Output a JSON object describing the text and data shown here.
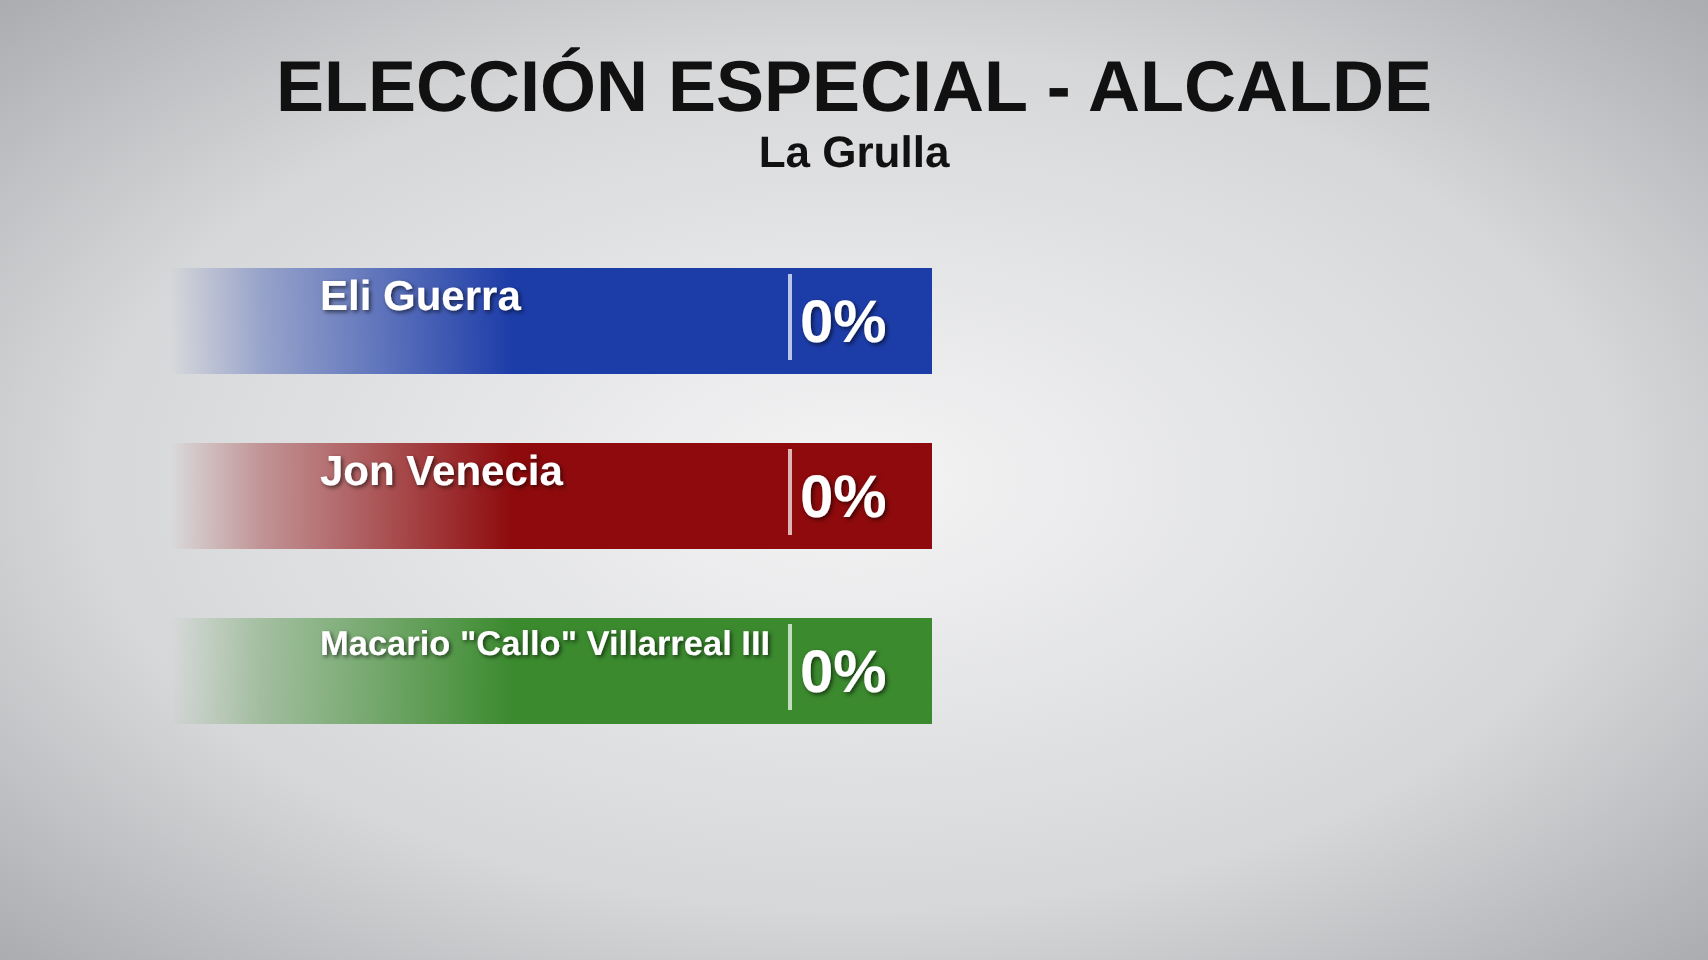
{
  "chart_data": {
    "type": "other",
    "title": "ELECCIÓN ESPECIAL - ALCALDE",
    "subtitle": "La Grulla",
    "categories": [
      "Eli Guerra",
      "Jon Venecia",
      "Macario \"Callo\" Villarreal III"
    ],
    "values": [
      0,
      0,
      0
    ],
    "value_labels": [
      "0%",
      "0%",
      "0%"
    ],
    "colors": [
      "#1c3ca8",
      "#8e0a0c",
      "#3b8a2e"
    ]
  }
}
